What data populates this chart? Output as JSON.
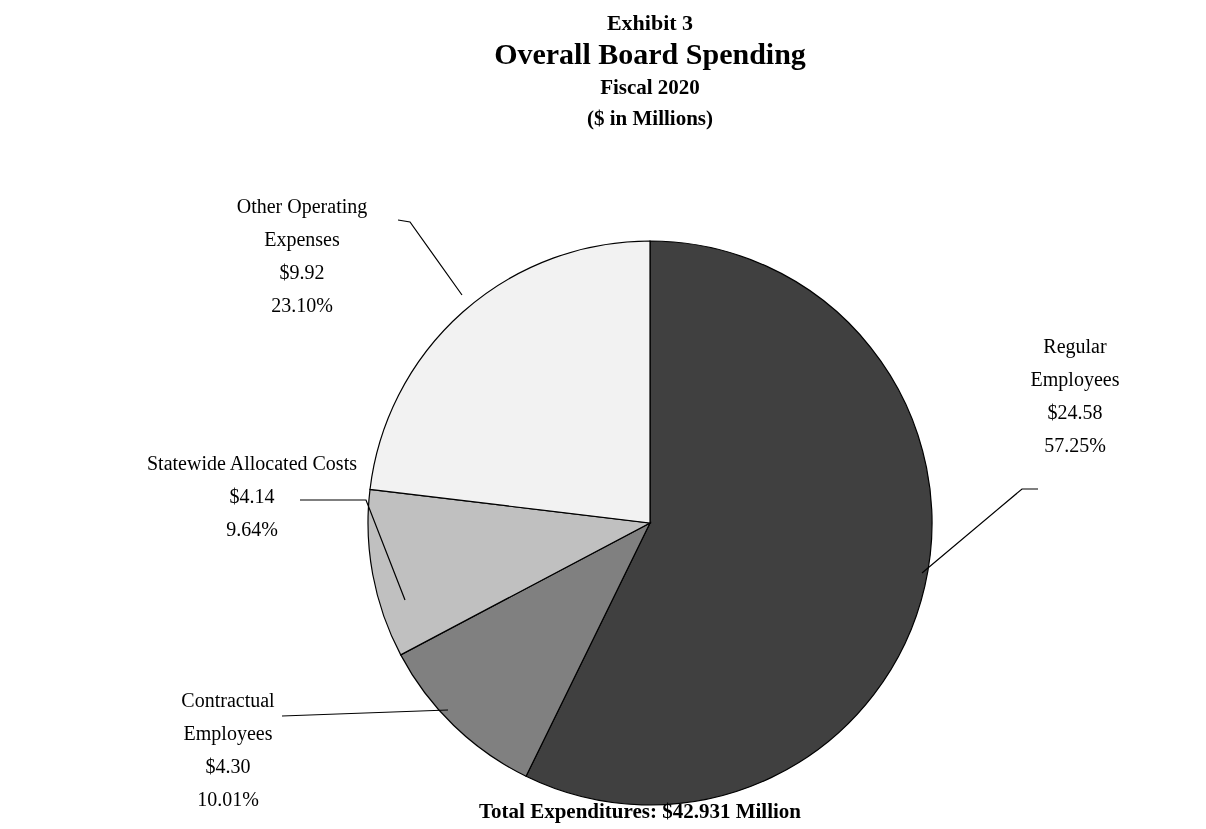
{
  "chart_data": {
    "type": "pie",
    "title": "Overall Board Spending",
    "subtitle": "Fiscal 2020",
    "annotations": [
      "Exhibit 3",
      "($ in Millions)",
      "Total Expenditures:  $42.931 Million"
    ],
    "categories": [
      "Regular Employees",
      "Contractual Employees",
      "Statewide Allocated Costs",
      "Other Operating Expenses"
    ],
    "values": [
      24.58,
      4.3,
      4.14,
      9.92
    ],
    "value_labels": [
      "$24.58\n57.25%",
      "$4.30\n10.01%",
      "$4.14\n9.64%",
      "$9.92\n23.10%"
    ],
    "colors": [
      "#404040",
      "#808080",
      "#c0c0c0",
      "#f2f2f2"
    ]
  }
}
